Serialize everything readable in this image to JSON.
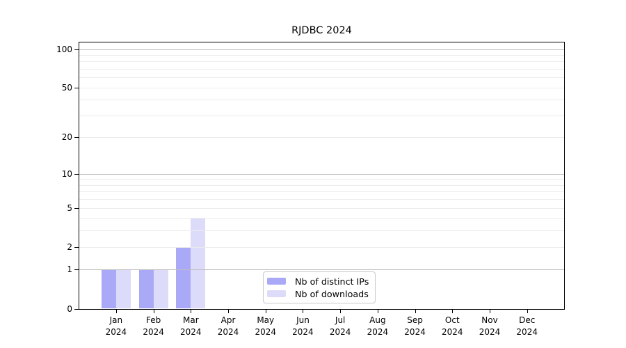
{
  "chart_data": {
    "type": "bar",
    "title": "RJDBC 2024",
    "categories": [
      "Jan 2024",
      "Feb 2024",
      "Mar 2024",
      "Apr 2024",
      "May 2024",
      "Jun 2024",
      "Jul 2024",
      "Aug 2024",
      "Sep 2024",
      "Oct 2024",
      "Nov 2024",
      "Dec 2024"
    ],
    "month_labels": [
      "Jan",
      "Feb",
      "Mar",
      "Apr",
      "May",
      "Jun",
      "Jul",
      "Aug",
      "Sep",
      "Oct",
      "Nov",
      "Dec"
    ],
    "year_label": "2024",
    "series": [
      {
        "name": "Nb of distinct IPs",
        "color": "#a9a9f8",
        "values": [
          1,
          1,
          2,
          0,
          0,
          0,
          0,
          0,
          0,
          0,
          0,
          0
        ]
      },
      {
        "name": "Nb of downloads",
        "color": "#dcdcfa",
        "values": [
          1,
          1,
          4,
          0,
          0,
          0,
          0,
          0,
          0,
          0,
          0,
          0
        ]
      }
    ],
    "xlabel": "",
    "ylabel": "",
    "y_axis": {
      "scale": "log1p",
      "ylim": [
        0,
        100
      ],
      "tick_values": [
        0,
        1,
        2,
        5,
        10,
        20,
        50,
        100
      ],
      "tick_labels": [
        "0",
        "1",
        "2",
        "5",
        "10",
        "20",
        "50",
        "100"
      ],
      "major_gridline_values": [
        1,
        10,
        100
      ],
      "minor_gridline_values": [
        2,
        3,
        4,
        5,
        6,
        7,
        8,
        9,
        20,
        30,
        40,
        50,
        60,
        70,
        80,
        90
      ]
    },
    "grid": "horizontal",
    "legend": {
      "position": "inside-bottom-center",
      "items": [
        "Nb of distinct IPs",
        "Nb of downloads"
      ]
    },
    "colors": {
      "bar_distinct_ips": "#a9a9f8",
      "bar_downloads": "#dcdcfa",
      "grid_major": "#bdbdbd",
      "grid_minor": "#ececec",
      "axis": "#000000",
      "legend_border": "#c9c9c9",
      "background": "#ffffff"
    }
  }
}
